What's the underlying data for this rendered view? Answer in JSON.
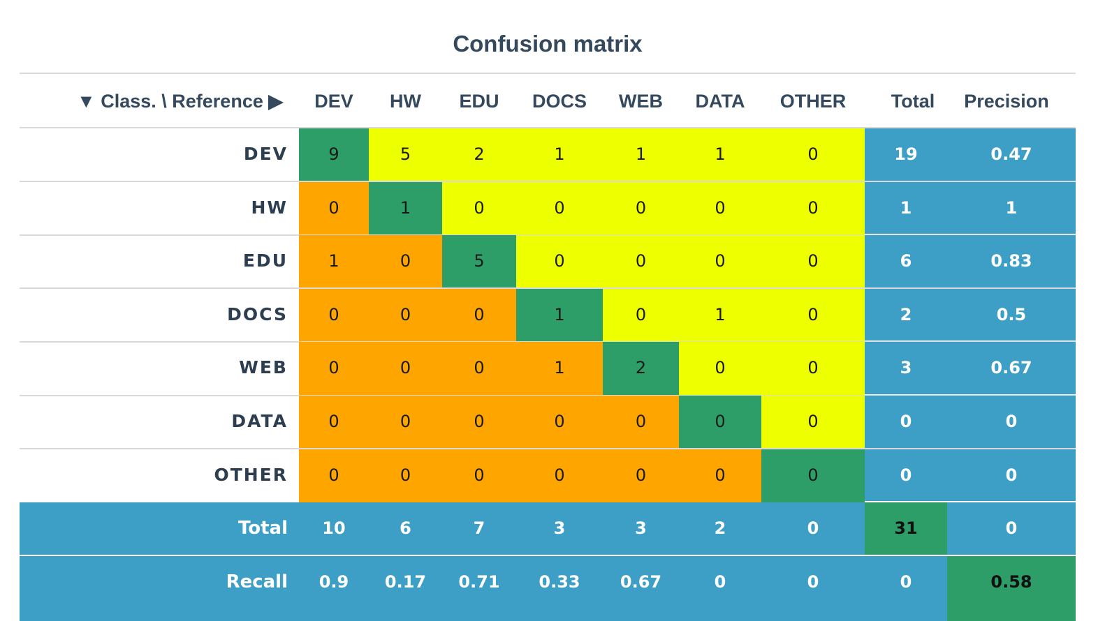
{
  "chart_data": {
    "type": "heatmap",
    "title": "Confusion matrix",
    "corner_label": "▼ Class. \\ Reference ▶",
    "columns": [
      "DEV",
      "HW",
      "EDU",
      "DOCS",
      "WEB",
      "DATA",
      "OTHER"
    ],
    "rows": [
      "DEV",
      "HW",
      "EDU",
      "DOCS",
      "WEB",
      "DATA",
      "OTHER"
    ],
    "total_header": "Total",
    "precision_header": "Precision",
    "matrix": [
      [
        9,
        5,
        2,
        1,
        1,
        1,
        0
      ],
      [
        0,
        1,
        0,
        0,
        0,
        0,
        0
      ],
      [
        1,
        0,
        5,
        0,
        0,
        0,
        0
      ],
      [
        0,
        0,
        0,
        1,
        0,
        1,
        0
      ],
      [
        0,
        0,
        0,
        1,
        2,
        0,
        0
      ],
      [
        0,
        0,
        0,
        0,
        0,
        0,
        0
      ],
      [
        0,
        0,
        0,
        0,
        0,
        0,
        0
      ]
    ],
    "row_totals": [
      19,
      1,
      6,
      2,
      3,
      0,
      0
    ],
    "precision": [
      "0.47",
      "1",
      "0.83",
      "0.5",
      "0.67",
      "0",
      "0"
    ],
    "total_row_label": "Total",
    "column_totals": [
      10,
      6,
      7,
      3,
      3,
      2,
      0
    ],
    "grand_total": 31,
    "total_row_precision": "0",
    "recall_row_label": "Recall",
    "recall": [
      "0.9",
      "0.17",
      "0.71",
      "0.33",
      "0.67",
      "0",
      "0"
    ],
    "recall_total": "0",
    "overall": "0.58"
  },
  "colors": {
    "diagonal": "#2e9e68",
    "above_diagonal": "#eeff00",
    "below_diagonal": "#ffa500",
    "summary": "#3d9fc5",
    "highlight": "#2e9e68"
  }
}
